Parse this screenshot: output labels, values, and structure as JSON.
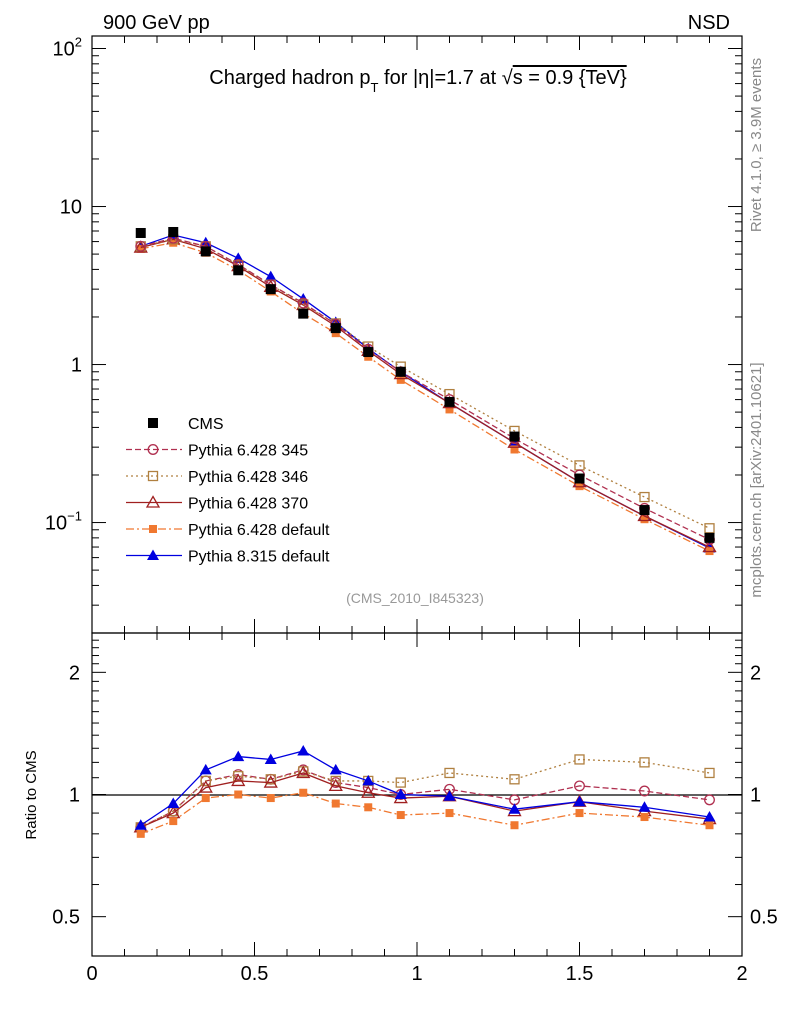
{
  "header": {
    "left_label": "900 GeV pp",
    "right_label": "NSD"
  },
  "side_labels": {
    "rivet": "Rivet 4.1.0, ≥ 3.9M events",
    "mcplots": "mcplots.cern.ch [arXiv:2401.10621]"
  },
  "chart_data": [
    {
      "type": "line",
      "title": "Charged hadron p_T for |η|=1.7 at √s = 0.9 {TeV}",
      "title_parts": {
        "a": "Charged hadron p",
        "sub": "T",
        "b": " for |η|=1.7 at √",
        "c": "s = 0.9 {TeV}"
      },
      "analysis_label": "(CMS_2010_I845323)",
      "yscale": "log",
      "xlim": [
        0,
        2
      ],
      "ylim": [
        0.02,
        120
      ],
      "y_ticks": [
        {
          "value": 0.1,
          "base": "10",
          "exp": "−1"
        },
        {
          "value": 1,
          "base": "1",
          "exp": ""
        },
        {
          "value": 10,
          "base": "10",
          "exp": ""
        },
        {
          "value": 100,
          "base": "10",
          "exp": "2"
        }
      ],
      "legend_position": "lower-left",
      "series": [
        {
          "name": "CMS",
          "color": "#000000",
          "marker": "filled-square",
          "line": "none",
          "x": [
            0.15,
            0.25,
            0.35,
            0.45,
            0.55,
            0.65,
            0.75,
            0.85,
            0.95,
            1.1,
            1.3,
            1.5,
            1.7,
            1.9
          ],
          "y": [
            6.8,
            6.9,
            5.2,
            3.95,
            3.0,
            2.1,
            1.7,
            1.2,
            0.9,
            0.58,
            0.35,
            0.19,
            0.12,
            0.08
          ]
        },
        {
          "name": "Pythia 6.428 345",
          "color": "#b03050",
          "marker": "open-circle",
          "line": "dashed",
          "x": [
            0.15,
            0.25,
            0.35,
            0.45,
            0.55,
            0.65,
            0.75,
            0.85,
            0.95,
            1.1,
            1.3,
            1.5,
            1.7,
            1.9
          ],
          "y": [
            5.6,
            6.3,
            5.6,
            4.3,
            3.2,
            2.45,
            1.8,
            1.25,
            0.9,
            0.6,
            0.34,
            0.2,
            0.123,
            0.078
          ]
        },
        {
          "name": "Pythia 6.428 346",
          "color": "#b08040",
          "marker": "open-square",
          "line": "dotted",
          "x": [
            0.15,
            0.25,
            0.35,
            0.45,
            0.55,
            0.65,
            0.75,
            0.85,
            0.95,
            1.1,
            1.3,
            1.5,
            1.7,
            1.9
          ],
          "y": [
            5.6,
            6.2,
            5.6,
            4.25,
            3.2,
            2.4,
            1.82,
            1.3,
            0.97,
            0.65,
            0.38,
            0.23,
            0.145,
            0.092
          ]
        },
        {
          "name": "Pythia 6.428 370",
          "color": "#a02020",
          "marker": "open-triangle",
          "line": "solid",
          "x": [
            0.15,
            0.25,
            0.35,
            0.45,
            0.55,
            0.65,
            0.75,
            0.85,
            0.95,
            1.1,
            1.3,
            1.5,
            1.7,
            1.9
          ],
          "y": [
            5.5,
            6.2,
            5.4,
            4.2,
            3.1,
            2.38,
            1.75,
            1.22,
            0.87,
            0.57,
            0.32,
            0.18,
            0.11,
            0.07
          ]
        },
        {
          "name": "Pythia 6.428 default",
          "color": "#f07830",
          "marker": "filled-square-small",
          "line": "dashdot",
          "x": [
            0.15,
            0.25,
            0.35,
            0.45,
            0.55,
            0.65,
            0.75,
            0.85,
            0.95,
            1.1,
            1.3,
            1.5,
            1.7,
            1.9
          ],
          "y": [
            5.4,
            5.9,
            5.1,
            3.95,
            2.9,
            2.1,
            1.58,
            1.12,
            0.8,
            0.52,
            0.29,
            0.17,
            0.105,
            0.066
          ]
        },
        {
          "name": "Pythia 8.315 default",
          "color": "#0000e0",
          "marker": "filled-triangle",
          "line": "solid",
          "x": [
            0.15,
            0.25,
            0.35,
            0.45,
            0.55,
            0.65,
            0.75,
            0.85,
            0.95,
            1.1,
            1.3,
            1.5,
            1.7,
            1.9
          ],
          "y": [
            5.6,
            6.6,
            5.9,
            4.7,
            3.6,
            2.6,
            1.85,
            1.26,
            0.9,
            0.57,
            0.32,
            0.18,
            0.11,
            0.069
          ]
        }
      ]
    },
    {
      "type": "line",
      "ylabel": "Ratio to CMS",
      "yscale": "log",
      "xlim": [
        0,
        2
      ],
      "ylim": [
        0.4,
        2.5
      ],
      "reference_line": 1,
      "x_ticks": [
        "0",
        "0.5",
        "1",
        "1.5",
        "2"
      ],
      "y_tick_labels": [
        {
          "value": 0.5,
          "label": "0.5"
        },
        {
          "value": 1,
          "label": "1"
        },
        {
          "value": 2,
          "label": "2"
        }
      ],
      "series": [
        {
          "name": "Pythia 6.428 345",
          "x": [
            0.15,
            0.25,
            0.35,
            0.45,
            0.55,
            0.65,
            0.75,
            0.85,
            0.95,
            1.1,
            1.3,
            1.5,
            1.7,
            1.9
          ],
          "y": [
            0.83,
            0.91,
            1.08,
            1.12,
            1.09,
            1.15,
            1.07,
            1.04,
            1.0,
            1.03,
            0.97,
            1.05,
            1.02,
            0.97
          ]
        },
        {
          "name": "Pythia 6.428 346",
          "x": [
            0.15,
            0.25,
            0.35,
            0.45,
            0.55,
            0.65,
            0.75,
            0.85,
            0.95,
            1.1,
            1.3,
            1.5,
            1.7,
            1.9
          ],
          "y": [
            0.83,
            0.91,
            1.08,
            1.11,
            1.09,
            1.14,
            1.08,
            1.08,
            1.07,
            1.13,
            1.09,
            1.22,
            1.2,
            1.13
          ]
        },
        {
          "name": "Pythia 6.428 370",
          "x": [
            0.15,
            0.25,
            0.35,
            0.45,
            0.55,
            0.65,
            0.75,
            0.85,
            0.95,
            1.1,
            1.3,
            1.5,
            1.7,
            1.9
          ],
          "y": [
            0.83,
            0.9,
            1.04,
            1.08,
            1.07,
            1.13,
            1.05,
            1.01,
            0.98,
            0.99,
            0.91,
            0.96,
            0.91,
            0.87
          ]
        },
        {
          "name": "Pythia 6.428 default",
          "x": [
            0.15,
            0.25,
            0.35,
            0.45,
            0.55,
            0.65,
            0.75,
            0.85,
            0.95,
            1.1,
            1.3,
            1.5,
            1.7,
            1.9
          ],
          "y": [
            0.8,
            0.86,
            0.98,
            1.0,
            0.98,
            1.01,
            0.95,
            0.93,
            0.89,
            0.9,
            0.84,
            0.9,
            0.88,
            0.84
          ]
        },
        {
          "name": "Pythia 8.315 default",
          "x": [
            0.15,
            0.25,
            0.35,
            0.45,
            0.55,
            0.65,
            0.75,
            0.85,
            0.95,
            1.1,
            1.3,
            1.5,
            1.7,
            1.9
          ],
          "y": [
            0.84,
            0.95,
            1.15,
            1.24,
            1.22,
            1.28,
            1.15,
            1.08,
            1.0,
            0.99,
            0.92,
            0.96,
            0.93,
            0.88
          ]
        }
      ]
    }
  ]
}
